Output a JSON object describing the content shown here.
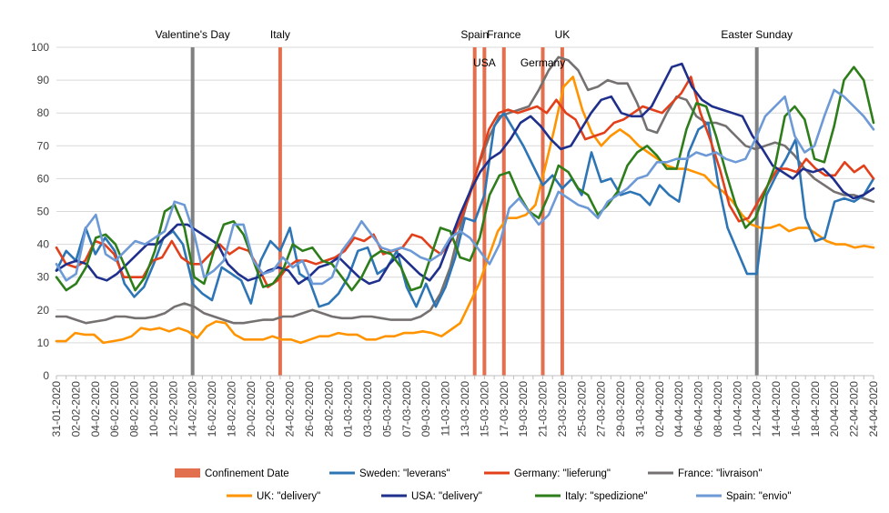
{
  "chart_data": {
    "type": "line",
    "title": "",
    "xlabel": "",
    "ylabel": "",
    "ylim": [
      0,
      100
    ],
    "y_ticks": [
      0,
      10,
      20,
      30,
      40,
      50,
      60,
      70,
      80,
      90,
      100
    ],
    "grid": "horizontal",
    "legend_position": "bottom",
    "x_range": [
      "31-01-2020",
      "24-04-2020"
    ],
    "x_tick_labels": [
      "31-01-2020",
      "02-02-2020",
      "04-02-2020",
      "06-02-2020",
      "08-02-2020",
      "10-02-2020",
      "12-02-2020",
      "14-02-2020",
      "16-02-2020",
      "18-02-2020",
      "20-02-2020",
      "22-02-2020",
      "24-02-2020",
      "26-02-2020",
      "28-02-2020",
      "01-03-2020",
      "03-03-2020",
      "05-03-2020",
      "07-03-2020",
      "09-03-2020",
      "11-03-2020",
      "13-03-2020",
      "15-03-2020",
      "17-03-2020",
      "19-03-2020",
      "21-03-2020",
      "23-03-2020",
      "25-03-2020",
      "27-03-2020",
      "29-03-2020",
      "31-03-2020",
      "02-04-2020",
      "04-04-2020",
      "06-04-2020",
      "08-04-2020",
      "10-04-2020",
      "12-04-2020",
      "14-04-2020",
      "16-04-2020",
      "18-04-2020",
      "20-04-2020",
      "22-04-2020",
      "24-04-2020"
    ],
    "events": [
      {
        "label": "Valentine's Day",
        "date": "14-02-2020",
        "kind": "holiday",
        "color": "#808080",
        "label_row": 1
      },
      {
        "label": "Italy",
        "date": "23-02-2020",
        "kind": "confinement",
        "color": "#e2704f",
        "label_row": 1
      },
      {
        "label": "Spain",
        "date": "14-03-2020",
        "kind": "confinement",
        "color": "#e2704f",
        "label_row": 1
      },
      {
        "label": "USA",
        "date": "15-03-2020",
        "kind": "confinement",
        "color": "#e2704f",
        "label_row": 2
      },
      {
        "label": "France",
        "date": "17-03-2020",
        "kind": "confinement",
        "color": "#e2704f",
        "label_row": 1
      },
      {
        "label": "Germany",
        "date": "21-03-2020",
        "kind": "confinement",
        "color": "#e2704f",
        "label_row": 2
      },
      {
        "label": "UK",
        "date": "23-03-2020",
        "kind": "confinement",
        "color": "#e2704f",
        "label_row": 1
      },
      {
        "label": "Easter Sunday",
        "date": "12-04-2020",
        "kind": "holiday",
        "color": "#808080",
        "label_row": 1
      }
    ],
    "legend": [
      {
        "label": "Confinement Date",
        "color": "#e2704f",
        "shape": "rect"
      },
      {
        "label": "Sweden: \"leverans\"",
        "color": "#2e75b6",
        "shape": "line"
      },
      {
        "label": "Germany: \"lieferung\"",
        "color": "#e2401b",
        "shape": "line"
      },
      {
        "label": "France: \"livraison\"",
        "color": "#767171",
        "shape": "line"
      },
      {
        "label": "UK: \"delivery\"",
        "color": "#ff9400",
        "shape": "line"
      },
      {
        "label": "USA: \"delivery\"",
        "color": "#1f2f8c",
        "shape": "line"
      },
      {
        "label": "Italy: \"spedizione\"",
        "color": "#2e7d1b",
        "shape": "line"
      },
      {
        "label": "Spain: \"envio\"",
        "color": "#6d9ad6",
        "shape": "line"
      }
    ],
    "series": [
      {
        "name": "France: \"livraison\"",
        "color": "#767171",
        "values": [
          18,
          18,
          17,
          16,
          16.5,
          17,
          18,
          18,
          17.5,
          17.5,
          18,
          19,
          21,
          22,
          21,
          19,
          18,
          17,
          16,
          16,
          16.5,
          17,
          17,
          18,
          18,
          19,
          20,
          19,
          18,
          17.5,
          17.5,
          18,
          18,
          17.5,
          17,
          17,
          17,
          18,
          20,
          25,
          33,
          45,
          56,
          65,
          73,
          79,
          80,
          81,
          82,
          87,
          93,
          97,
          96,
          93,
          87,
          88,
          90,
          89,
          89,
          83,
          75,
          74,
          80,
          85,
          84,
          79,
          77,
          77,
          76,
          73,
          70,
          69,
          70,
          71,
          70,
          67,
          63,
          60,
          58,
          56,
          55,
          55,
          54,
          53
        ]
      },
      {
        "name": "UK: \"delivery\"",
        "color": "#ff9400",
        "values": [
          10.5,
          10.5,
          13,
          12.5,
          12.5,
          10,
          10.5,
          11,
          12,
          14.5,
          14,
          14.5,
          13.5,
          14.5,
          13.5,
          11.5,
          15,
          16.5,
          16,
          12.5,
          11,
          11,
          11,
          12,
          11,
          11,
          10,
          11,
          12,
          12,
          13,
          12.5,
          12.5,
          11,
          11,
          12,
          12,
          13,
          13,
          13.5,
          13,
          12,
          14,
          16,
          22,
          28,
          36,
          44,
          48,
          48,
          49,
          52,
          63,
          75,
          88,
          91,
          81,
          74,
          70,
          73,
          75,
          73,
          70,
          68,
          66,
          64,
          63,
          63,
          62,
          61,
          58,
          56,
          53,
          49,
          46,
          45,
          45,
          46,
          44,
          45,
          45,
          43,
          41,
          40,
          40,
          39,
          39.5,
          39
        ]
      },
      {
        "name": "Sweden: \"leverans\"",
        "color": "#2e75b6",
        "values": [
          32,
          38,
          35,
          45,
          37,
          42,
          38,
          28,
          24,
          27,
          34,
          42,
          44,
          40,
          28,
          25,
          23,
          33,
          31,
          29,
          22,
          35,
          41,
          38,
          45,
          31,
          29,
          21,
          22,
          25,
          30,
          38,
          39,
          31,
          33,
          38,
          27,
          21,
          28,
          21,
          27,
          36,
          48,
          47,
          55,
          76,
          80,
          75,
          70,
          64,
          58,
          61,
          57,
          60,
          55,
          68,
          59,
          60,
          55,
          56,
          55,
          52,
          58,
          55,
          53,
          68,
          75,
          77,
          59,
          45,
          38,
          31,
          31,
          55,
          61,
          66,
          72,
          48,
          41,
          42,
          53,
          54,
          53,
          55,
          60
        ]
      },
      {
        "name": "Germany: \"lieferung\"",
        "color": "#e2401b",
        "values": [
          39,
          34,
          33,
          35,
          41,
          40,
          37,
          30,
          30,
          30,
          35,
          36,
          41,
          36,
          34,
          34,
          37,
          40,
          37,
          39,
          38,
          33,
          27,
          29,
          33,
          35,
          35,
          34,
          35,
          36,
          38,
          42,
          41,
          43,
          37,
          38,
          39,
          43,
          42,
          39,
          37,
          41,
          47,
          55,
          65,
          75,
          80,
          81,
          80,
          81,
          82,
          80,
          84,
          80,
          78,
          72,
          73,
          74,
          77,
          78,
          80,
          82,
          81,
          80,
          83,
          86,
          91,
          80,
          72,
          63,
          52,
          47,
          48,
          53,
          58,
          63,
          63,
          62,
          66,
          63,
          61,
          61,
          65,
          62,
          64,
          60
        ]
      },
      {
        "name": "USA: \"delivery\"",
        "color": "#1f2f8c",
        "values": [
          32,
          34,
          35,
          34,
          30,
          29,
          31,
          34,
          37,
          40,
          40,
          43,
          46,
          46,
          44,
          42,
          40,
          34,
          31,
          29,
          30,
          32,
          33,
          32,
          28,
          30,
          33,
          34,
          36,
          33,
          30,
          28,
          29,
          34,
          37,
          34,
          31,
          29,
          33,
          41,
          49,
          56,
          62,
          66,
          68,
          72,
          77,
          79,
          76,
          72,
          69,
          70,
          75,
          80,
          84,
          85,
          80,
          79,
          79,
          82,
          88,
          94,
          95,
          88,
          84,
          82,
          81,
          80,
          79,
          73,
          69,
          64,
          62,
          60,
          63,
          62,
          63,
          60,
          56,
          54,
          55,
          57
        ]
      },
      {
        "name": "Italy: \"spedizione\"",
        "color": "#2e7d1b",
        "values": [
          30,
          26,
          28,
          33,
          42,
          43,
          40,
          33,
          26,
          30,
          38,
          50,
          52,
          45,
          30,
          28,
          38,
          46,
          47,
          43,
          35,
          27,
          28,
          32,
          40,
          38,
          39,
          35,
          34,
          30,
          26,
          30,
          36,
          38,
          37,
          33,
          26,
          27,
          36,
          45,
          44,
          36,
          35,
          42,
          55,
          61,
          62,
          55,
          50,
          48,
          55,
          64,
          62,
          57,
          55,
          49,
          52,
          56,
          64,
          68,
          70,
          67,
          63,
          63,
          75,
          83,
          82,
          73,
          62,
          52,
          45,
          48,
          56,
          64,
          79,
          82,
          78,
          66,
          65,
          76,
          90,
          94,
          90,
          77
        ]
      },
      {
        "name": "Spain: \"envio\"",
        "color": "#6d9ad6",
        "values": [
          34,
          29,
          31,
          45,
          49,
          37,
          35,
          38,
          41,
          40,
          42,
          44,
          53,
          52,
          43,
          30,
          32,
          35,
          46,
          46,
          35,
          31,
          32,
          36,
          33,
          35,
          28,
          28,
          30,
          38,
          42,
          47,
          43,
          39,
          38,
          39,
          38,
          36,
          35,
          37,
          42,
          44,
          42,
          38,
          34,
          40,
          51,
          54,
          50,
          46,
          49,
          56,
          54,
          52,
          51,
          48,
          53,
          55,
          57,
          60,
          61,
          65,
          65,
          66,
          66,
          68,
          67,
          68,
          66,
          65,
          66,
          72,
          79,
          82,
          85,
          73,
          68,
          70,
          79,
          87,
          85,
          82,
          79,
          75
        ]
      }
    ]
  }
}
